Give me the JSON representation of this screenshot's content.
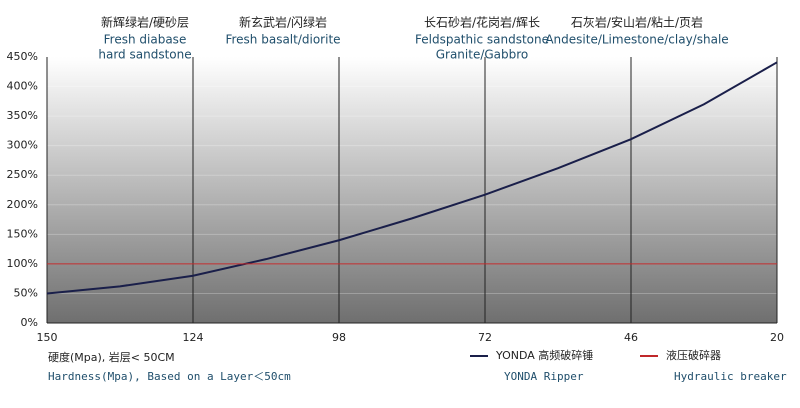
{
  "chart_data": {
    "type": "line",
    "annotations": [
      {
        "zh": "新辉绿岩/硬砂层",
        "en": [
          "Fresh diabase",
          "hard sandstone"
        ]
      },
      {
        "zh": "新玄武岩/闪绿岩",
        "en": [
          "Fresh basalt/diorite"
        ]
      },
      {
        "zh": "长石砂岩/花岗岩/辉长",
        "en": [
          "Feldspathic sandstone",
          "Granite/Gabbro"
        ]
      },
      {
        "zh": "石灰岩/安山岩/粘土/页岩",
        "en": [
          "Andesite/Limestone/clay/shale"
        ]
      }
    ],
    "x_label": "硬度(Mpa), 岩层< 50CM",
    "x_label_en": "Hardness(Mpa), Based on a Layer＜50cm",
    "x": [
      150,
      137,
      124,
      111,
      98,
      85,
      72,
      59,
      46,
      33,
      20
    ],
    "series": [
      {
        "name": "YONDA 高频破碎锤",
        "name_en": "YONDA Ripper",
        "color": "#1a1f4a",
        "values": [
          50,
          62,
          80,
          108,
          140,
          177,
          217,
          262,
          311,
          370,
          441
        ]
      },
      {
        "name": "液压破碎器",
        "name_en": "Hydraulic breaker",
        "color": "#c0282a",
        "values": [
          100,
          100,
          100,
          100,
          100,
          100,
          100,
          100,
          100,
          100,
          100
        ]
      }
    ],
    "xlim": [
      150,
      20
    ],
    "xticks": [
      150,
      124,
      98,
      72,
      46,
      20
    ],
    "ylim": [
      0,
      450
    ],
    "yticks": [
      {
        "value": 0,
        "label": "0%"
      },
      {
        "value": 50,
        "label": "50%"
      },
      {
        "value": 100,
        "label": "100%"
      },
      {
        "value": 150,
        "label": "150%"
      },
      {
        "value": 200,
        "label": "200%"
      },
      {
        "value": 250,
        "label": "250%"
      },
      {
        "value": 300,
        "label": "300%"
      },
      {
        "value": 350,
        "label": "350%"
      },
      {
        "value": 400,
        "label": "400%"
      },
      {
        "value": 450,
        "label": "450%"
      }
    ],
    "grid": true
  }
}
